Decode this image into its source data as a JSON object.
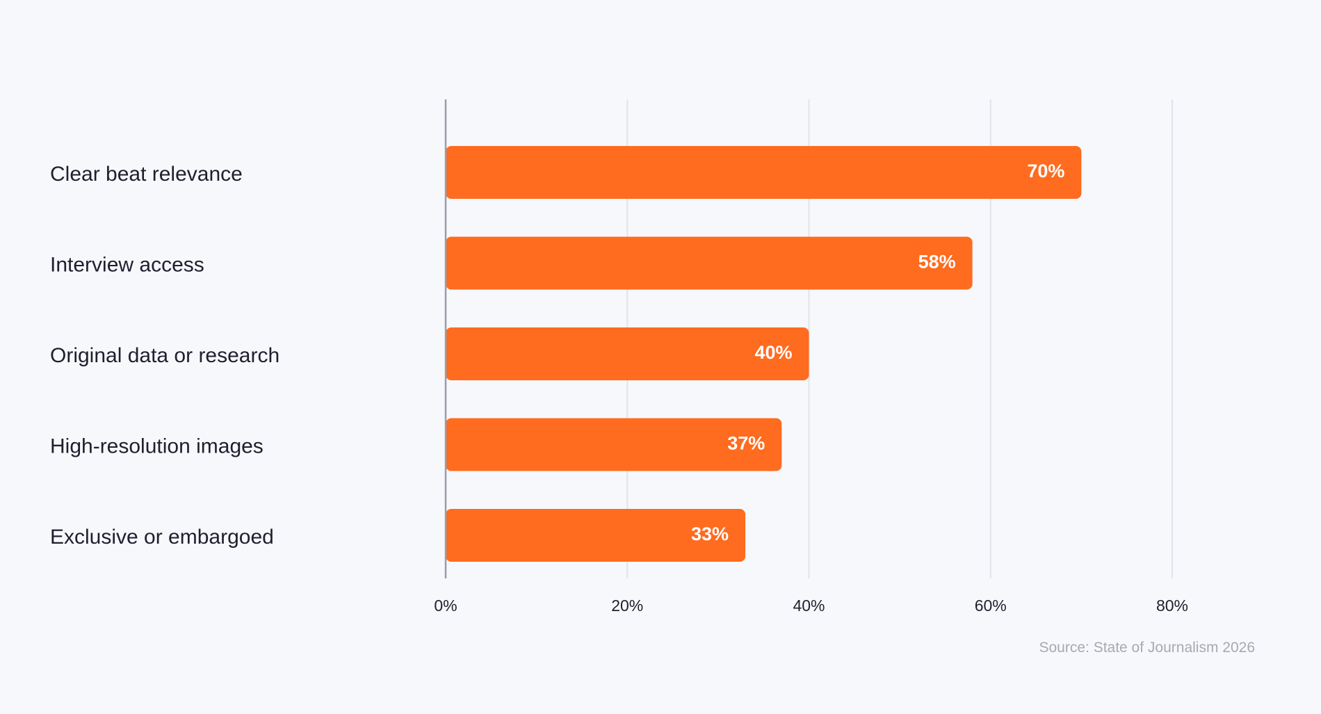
{
  "chart_data": {
    "type": "bar",
    "orientation": "horizontal",
    "categories": [
      "Clear beat relevance",
      "Interview access",
      "Original data or research",
      "High-resolution images",
      "Exclusive or embargoed"
    ],
    "values": [
      70,
      58,
      40,
      37,
      33
    ],
    "value_labels": [
      "70%",
      "58%",
      "40%",
      "37%",
      "33%"
    ],
    "xlim": [
      0,
      80
    ],
    "xticks": [
      0,
      20,
      40,
      60,
      80
    ],
    "xtick_labels": [
      "0%",
      "20%",
      "40%",
      "60%",
      "80%"
    ],
    "grid": "vertical",
    "bar_color": "#ff6b1f",
    "source": "Source: State of Journalism 2026"
  }
}
